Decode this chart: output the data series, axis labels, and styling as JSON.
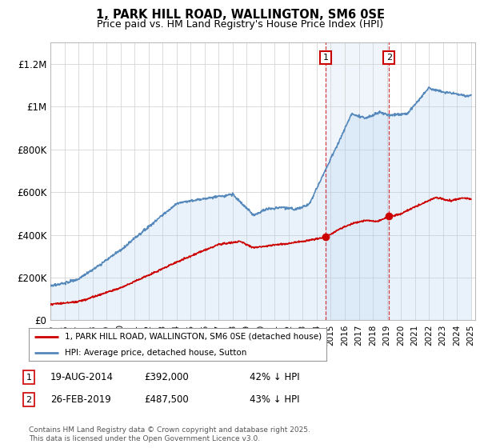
{
  "title": "1, PARK HILL ROAD, WALLINGTON, SM6 0SE",
  "subtitle": "Price paid vs. HM Land Registry's House Price Index (HPI)",
  "ylabel_ticks": [
    "£0",
    "£200K",
    "£400K",
    "£600K",
    "£800K",
    "£1M",
    "£1.2M"
  ],
  "ytick_values": [
    0,
    200000,
    400000,
    600000,
    800000,
    1000000,
    1200000
  ],
  "ylim": [
    0,
    1300000
  ],
  "x_start_year": 1995,
  "x_end_year": 2025,
  "purchase_color": "#cc0000",
  "hpi_color": "#5588bb",
  "hpi_fill_color": "#ddeeff",
  "annotation1": {
    "label": "1",
    "date": "19-AUG-2014",
    "price": "£392,000",
    "pct": "42% ↓ HPI"
  },
  "annotation2": {
    "label": "2",
    "date": "26-FEB-2019",
    "price": "£487,500",
    "pct": "43% ↓ HPI"
  },
  "legend_line1": "1, PARK HILL ROAD, WALLINGTON, SM6 0SE (detached house)",
  "legend_line2": "HPI: Average price, detached house, Sutton",
  "copyright": "Contains HM Land Registry data © Crown copyright and database right 2025.\nThis data is licensed under the Open Government Licence v3.0.",
  "background_color": "#ffffff",
  "grid_color": "#cccccc"
}
